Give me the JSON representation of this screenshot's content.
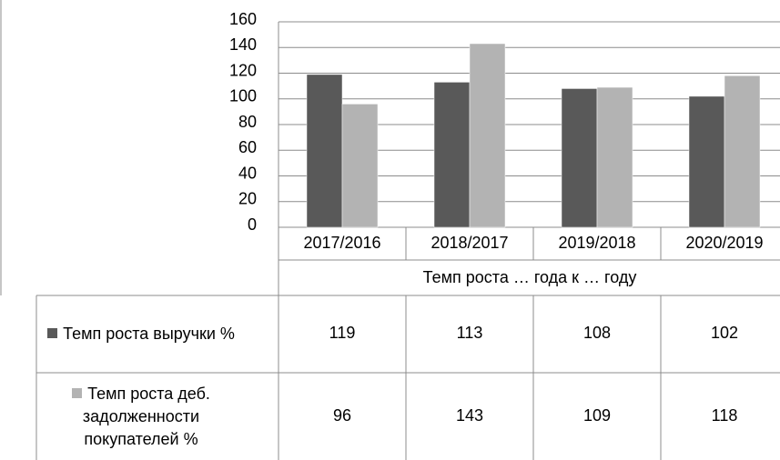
{
  "chart_data": {
    "type": "bar",
    "categories": [
      "2017/2016",
      "2018/2017",
      "2019/2018",
      "2020/2019"
    ],
    "x_label": "Темп роста … года к … году",
    "series": [
      {
        "name": "Темп роста выручки %",
        "color": "#595959",
        "values": [
          119,
          113,
          108,
          102
        ]
      },
      {
        "name": "Темп роста деб. задолженности покупателей %",
        "color": "#b3b3b3",
        "values": [
          96,
          143,
          109,
          118
        ]
      }
    ],
    "ylim": [
      0,
      160
    ],
    "yticks": [
      0,
      20,
      40,
      60,
      80,
      100,
      120,
      140,
      160
    ],
    "grid": true,
    "data_table": true
  }
}
